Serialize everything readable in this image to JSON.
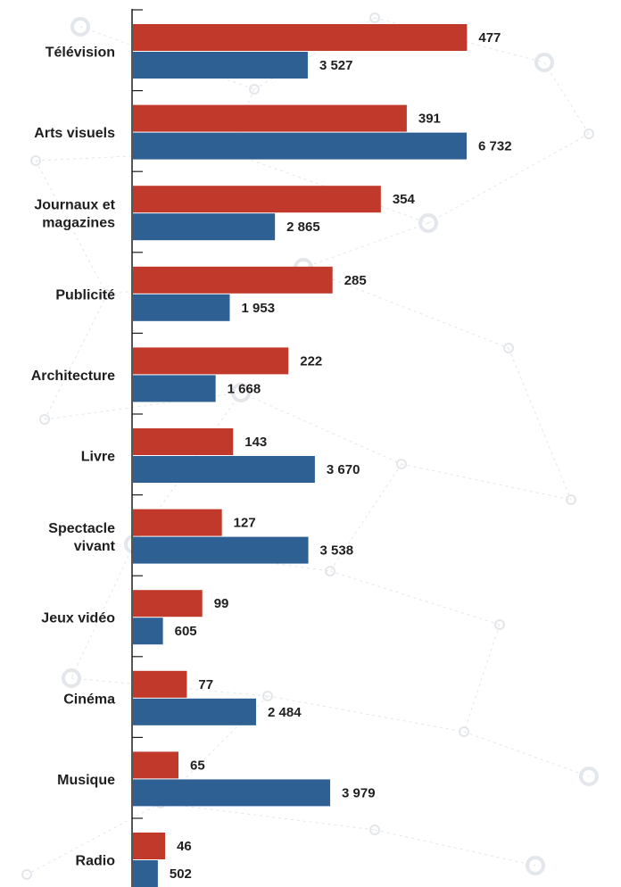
{
  "chart_data": {
    "type": "bar",
    "orientation": "horizontal",
    "categories": [
      [
        "Télévision"
      ],
      [
        "Arts visuels"
      ],
      [
        "Journaux et",
        "magazines"
      ],
      [
        "Publicité"
      ],
      [
        "Architecture"
      ],
      [
        "Livre"
      ],
      [
        "Spectacle",
        "vivant"
      ],
      [
        "Jeux vidéo"
      ],
      [
        "Cinéma"
      ],
      [
        "Musique"
      ],
      [
        "Radio"
      ]
    ],
    "series": [
      {
        "color": "#c0392b",
        "values": [
          477,
          391,
          354,
          285,
          222,
          143,
          127,
          99,
          77,
          65,
          46
        ],
        "labels": [
          "477",
          "391",
          "354",
          "285",
          "222",
          "143",
          "127",
          "99",
          "77",
          "65",
          "46"
        ],
        "scale_max": 688
      },
      {
        "color": "#2e6094",
        "values": [
          3527,
          6732,
          2865,
          1953,
          1668,
          3670,
          3538,
          605,
          2484,
          3979,
          502
        ],
        "labels": [
          "3 527",
          "6 732",
          "2 865",
          "1 953",
          "1 668",
          "3 670",
          "3 538",
          "605",
          "2 484",
          "3 979",
          "502"
        ],
        "scale_max": 9720
      }
    ],
    "title": "",
    "xlabel": "",
    "ylabel": "",
    "grid": false,
    "legend": "none"
  }
}
